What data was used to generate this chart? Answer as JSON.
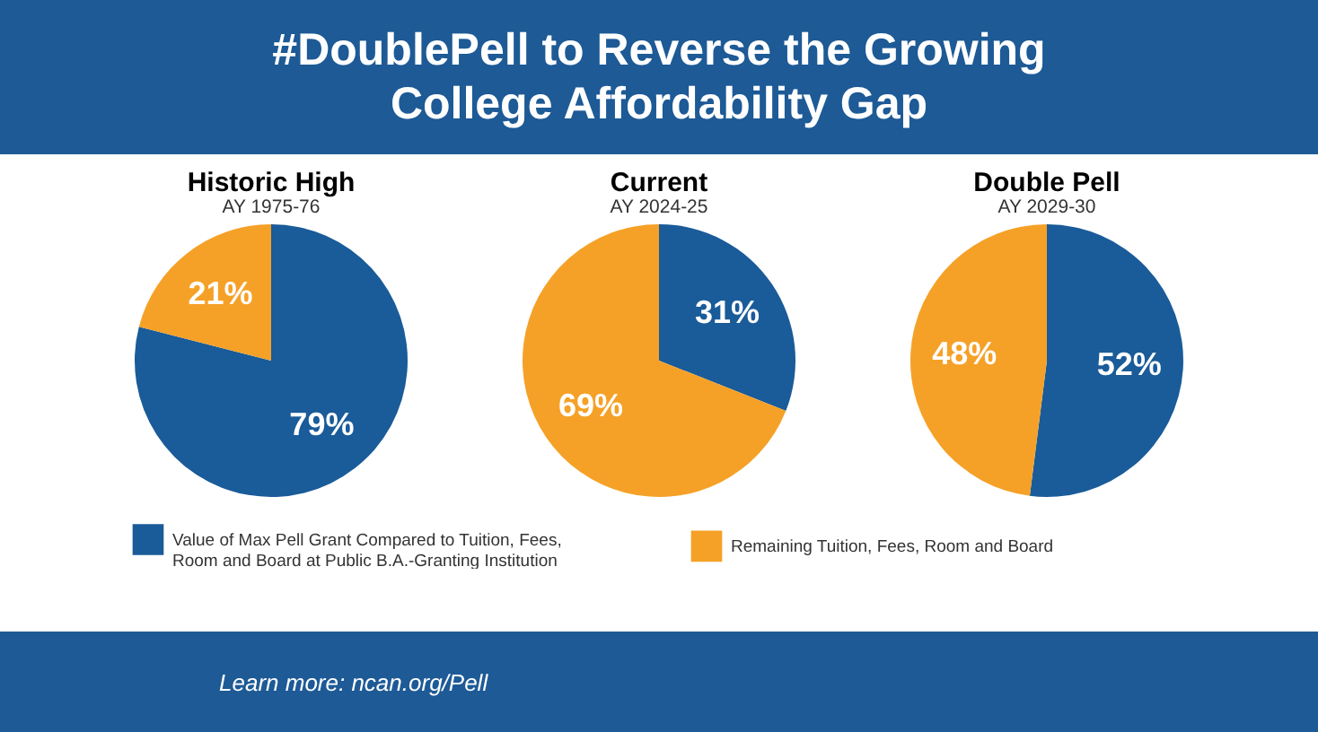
{
  "chart_data": [
    {
      "type": "other",
      "title": "#DoublePell to Reverse the Growing College Affordability Gap",
      "annotations": [
        "Learn more: ncan.org/Pell"
      ]
    },
    {
      "type": "pie",
      "title": "Historic High",
      "subtitle": "AY 1975-76",
      "categories": [
        "Value of Max Pell Grant Compared to Tuition, Fees, Room and Board at Public B.A.-Granting Institution",
        "Remaining Tuition, Fees, Room and Board"
      ],
      "values": [
        79,
        21
      ],
      "value_labels": [
        "79%",
        "21%"
      ],
      "colors": [
        "#1a5b99",
        "#f5a127"
      ],
      "legend": "bottom"
    },
    {
      "type": "pie",
      "title": "Current",
      "subtitle": "AY 2024-25",
      "categories": [
        null,
        null
      ],
      "values": [
        31,
        69
      ],
      "value_labels": [
        "31%",
        "69%"
      ],
      "colors": [
        "#1a5b99",
        "#f5a127"
      ]
    },
    {
      "type": "pie",
      "title": "Double Pell",
      "subtitle": "AY 2029-30",
      "categories": [
        null,
        null
      ],
      "values": [
        52,
        48
      ],
      "value_labels": [
        "52%",
        "48%"
      ],
      "colors": [
        "#1a5b99",
        "#f5a127"
      ]
    }
  ]
}
